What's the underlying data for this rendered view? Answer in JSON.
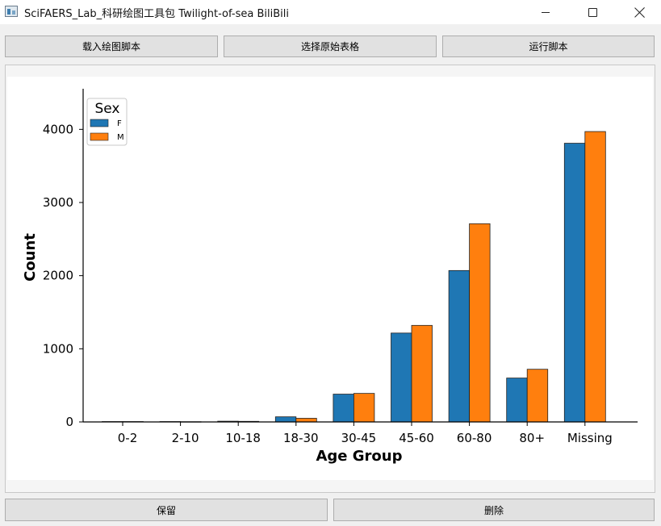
{
  "window": {
    "title": "SciFAERS_Lab_科研绘图工具包 Twilight-of-sea BiliBili",
    "icon": "app-icon"
  },
  "toolbar": {
    "load_script_label": "载入绘图脚本",
    "select_table_label": "选择原始表格",
    "run_script_label": "运行脚本"
  },
  "footer": {
    "save_label": "保留",
    "delete_label": "删除"
  },
  "chart_data": {
    "type": "bar",
    "title": "",
    "xlabel": "Age Group",
    "ylabel": "Count",
    "categories": [
      "0-2",
      "2-10",
      "10-18",
      "18-30",
      "30-45",
      "45-60",
      "60-80",
      "80+",
      "Missing"
    ],
    "series": [
      {
        "name": "F",
        "color": "#1f77b4",
        "values": [
          5,
          5,
          10,
          70,
          380,
          1215,
          2070,
          600,
          3810
        ]
      },
      {
        "name": "M",
        "color": "#ff7f0e",
        "values": [
          5,
          3,
          8,
          50,
          390,
          1320,
          2710,
          720,
          3970
        ]
      }
    ],
    "ylim": [
      0,
      4500
    ],
    "yticks": [
      0,
      1000,
      2000,
      3000,
      4000
    ],
    "legend": {
      "title": "Sex",
      "placement": "top-left"
    },
    "grid": false
  }
}
